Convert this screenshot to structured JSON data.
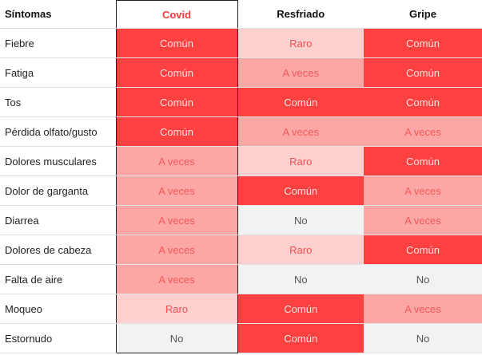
{
  "headers": {
    "symptoms": "Síntomas",
    "covid": "Covid",
    "resfriado": "Resfriado",
    "gripe": "Gripe"
  },
  "colors": {
    "comun": "#fd4040",
    "a_veces": "#fca6a6",
    "raro": "#fdd0d0",
    "no": "#f2f2f2",
    "highlight_header": "#f23c3c"
  },
  "rows": [
    {
      "symptom": "Fiebre",
      "covid": "Común",
      "resfriado": "Raro",
      "gripe": "Común"
    },
    {
      "symptom": "Fatiga",
      "covid": "Común",
      "resfriado": "A veces",
      "gripe": "Común"
    },
    {
      "symptom": "Tos",
      "covid": "Común",
      "resfriado": "Común",
      "gripe": "Común"
    },
    {
      "symptom": "Pérdida olfato/gusto",
      "covid": "Común",
      "resfriado": "A veces",
      "gripe": "A veces"
    },
    {
      "symptom": "Dolores musculares",
      "covid": "A veces",
      "resfriado": "Raro",
      "gripe": "Común"
    },
    {
      "symptom": "Dolor de garganta",
      "covid": "A veces",
      "resfriado": "Común",
      "gripe": "A veces"
    },
    {
      "symptom": "Diarrea",
      "covid": "A veces",
      "resfriado": "No",
      "gripe": "A veces"
    },
    {
      "symptom": "Dolores de cabeza",
      "covid": "A veces",
      "resfriado": "Raro",
      "gripe": "Común"
    },
    {
      "symptom": "Falta de aire",
      "covid": "A veces",
      "resfriado": "No",
      "gripe": "No"
    },
    {
      "symptom": "Moqueo",
      "covid": "Raro",
      "resfriado": "Común",
      "gripe": "A veces"
    },
    {
      "symptom": "Estornudo",
      "covid": "No",
      "resfriado": "Común",
      "gripe": "No"
    }
  ]
}
